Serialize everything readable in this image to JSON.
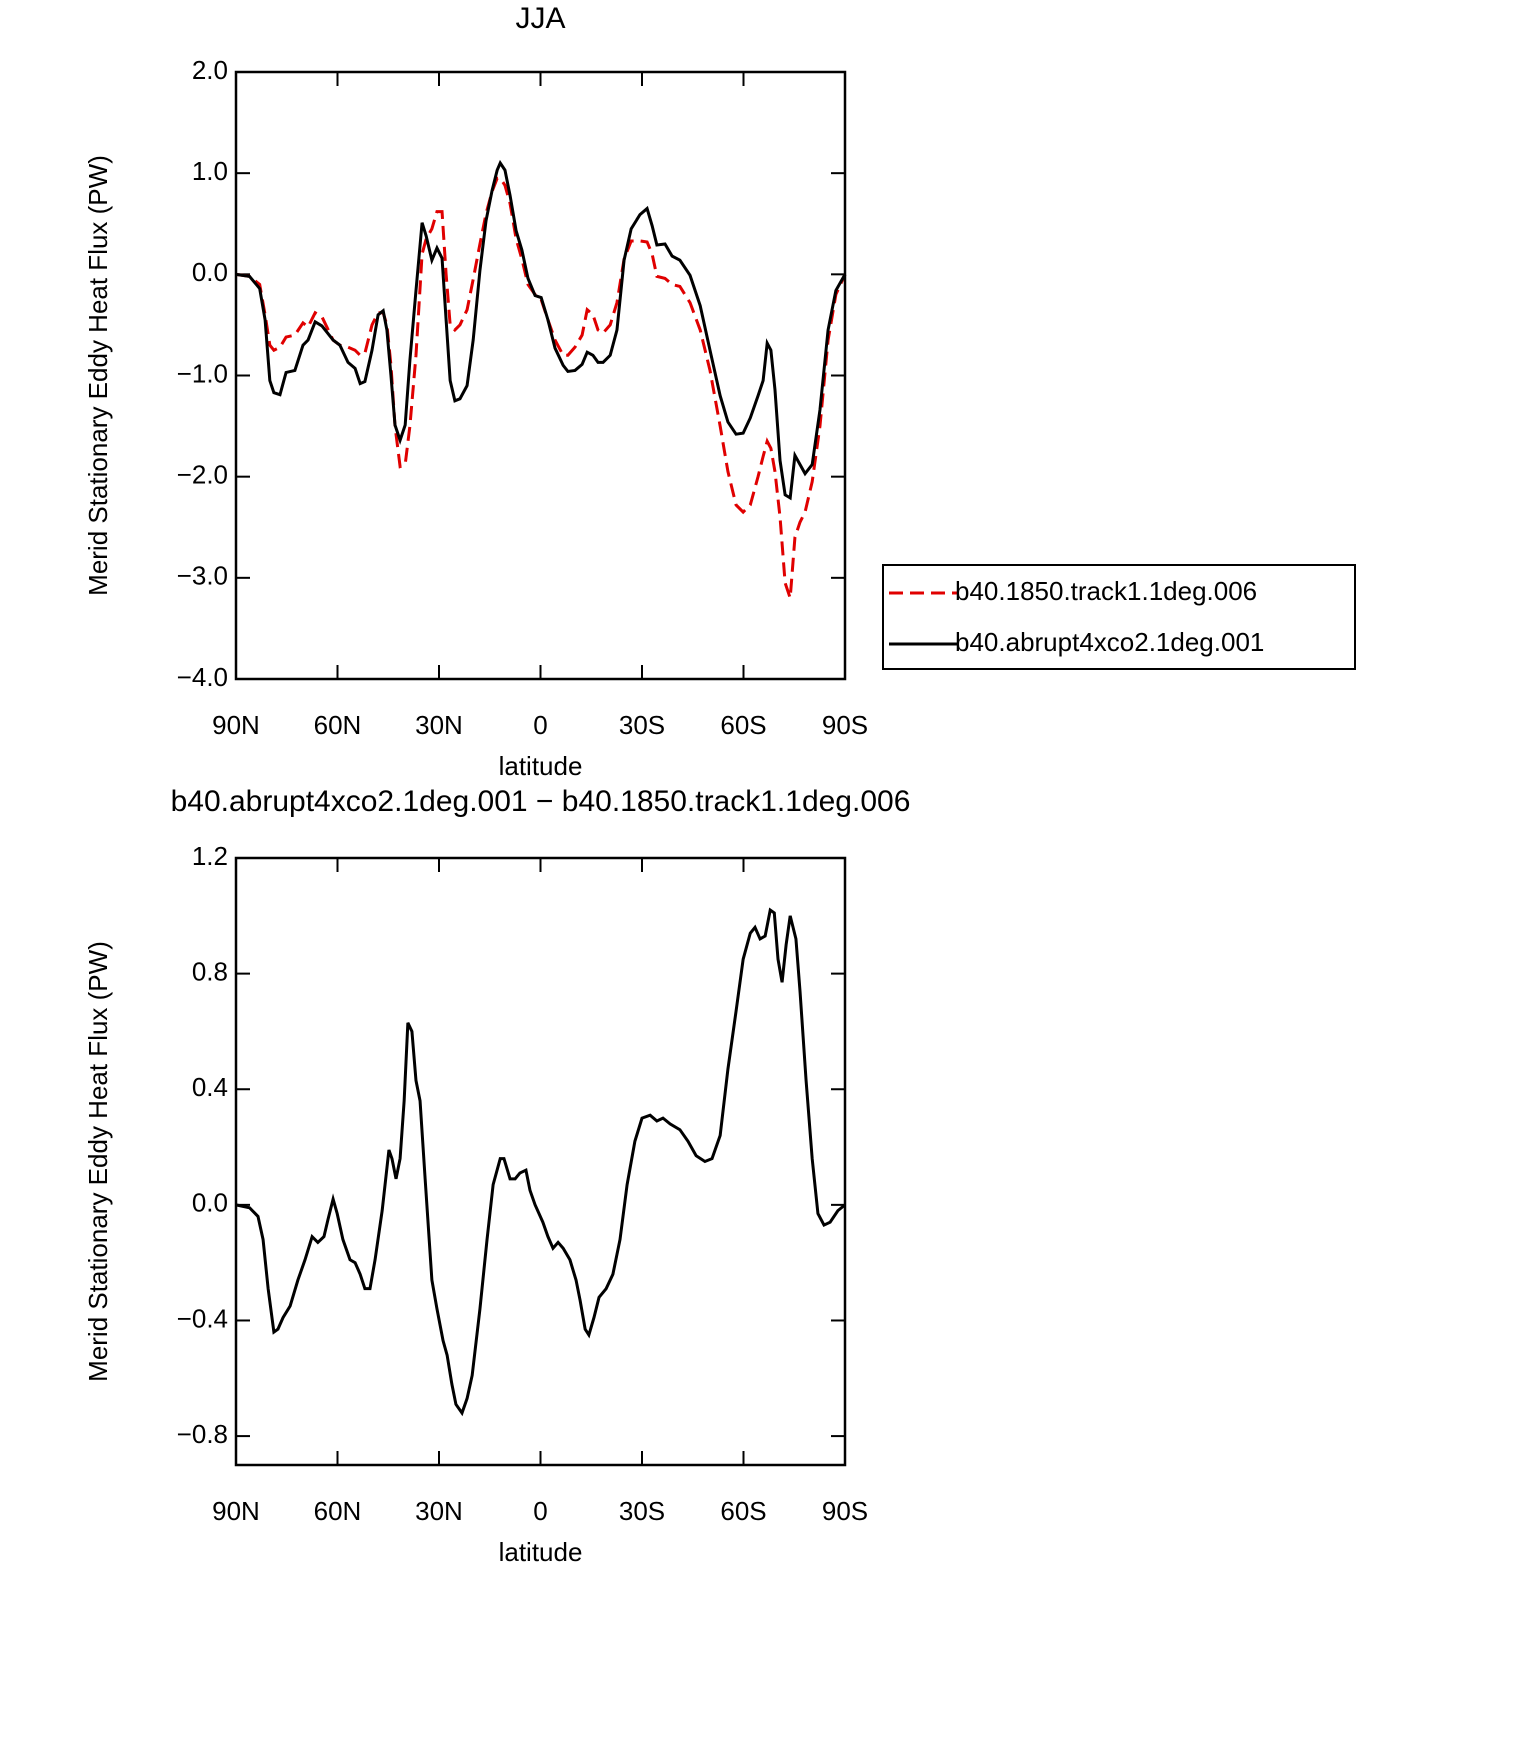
{
  "chart_data": [
    {
      "type": "line",
      "title": "JJA",
      "xlabel": "latitude",
      "ylabel": "Merid Stationary Eddy Heat Flux (PW)",
      "x": [
        90,
        86,
        83,
        81.4,
        80,
        78.8,
        77,
        75.2,
        72.6,
        70.2,
        68.7,
        66.6,
        64.6,
        61.3,
        59.3,
        56.9,
        54.8,
        53.3,
        51.9,
        49.8,
        48.0,
        46.5,
        45.4,
        44.2,
        43.0,
        41.5,
        40.0,
        38.6,
        36.8,
        35.0,
        33.8,
        32.1,
        30.6,
        29.1,
        27.9,
        26.7,
        25.3,
        23.8,
        21.7,
        19.9,
        17.9,
        16.1,
        14.3,
        12.8,
        11.9,
        10.5,
        9.0,
        7.2,
        5.5,
        3.7,
        1.6,
        -0.2,
        -2.2,
        -4.3,
        -6.7,
        -8.1,
        -10.2,
        -12.3,
        -13.8,
        -15.5,
        -17.0,
        -18.5,
        -20.6,
        -22.6,
        -24.7,
        -26.8,
        -29.4,
        -31.5,
        -33.0,
        -34.4,
        -36.8,
        -38.9,
        -41.2,
        -44.2,
        -47.2,
        -50.1,
        -53.1,
        -55.4,
        -57.8,
        -59.9,
        -62.0,
        -64.3,
        -65.8,
        -67.0,
        -68.1,
        -69.3,
        -70.8,
        -72.3,
        -73.8,
        -75.2,
        -76.7,
        -78.2,
        -80.3,
        -82.6,
        -85.0,
        -87.3,
        -90
      ],
      "series": [
        {
          "name": "b40.1850.track1.1deg.006",
          "color": "#e00000",
          "line_style": "dashed",
          "values": [
            0,
            -0.02,
            -0.1,
            -0.4,
            -0.7,
            -0.75,
            -0.72,
            -0.62,
            -0.6,
            -0.48,
            -0.52,
            -0.38,
            -0.42,
            -0.65,
            -0.7,
            -0.72,
            -0.75,
            -0.8,
            -0.78,
            -0.5,
            -0.38,
            -0.38,
            -0.5,
            -0.9,
            -1.5,
            -1.9,
            -1.88,
            -1.5,
            -0.8,
            0.2,
            0.35,
            0.45,
            0.62,
            0.62,
            0.0,
            -0.5,
            -0.55,
            -0.5,
            -0.35,
            -0.05,
            0.3,
            0.6,
            0.82,
            0.95,
            0.95,
            0.88,
            0.7,
            0.35,
            0.15,
            -0.1,
            -0.2,
            -0.25,
            -0.45,
            -0.65,
            -0.8,
            -0.8,
            -0.72,
            -0.6,
            -0.35,
            -0.4,
            -0.55,
            -0.58,
            -0.5,
            -0.28,
            0.15,
            0.33,
            0.33,
            0.32,
            0.2,
            -0.02,
            -0.04,
            -0.1,
            -0.12,
            -0.28,
            -0.55,
            -0.95,
            -1.5,
            -1.95,
            -2.28,
            -2.35,
            -2.28,
            -2.0,
            -1.8,
            -1.65,
            -1.72,
            -1.95,
            -2.4,
            -3.05,
            -3.2,
            -2.6,
            -2.45,
            -2.35,
            -2.05,
            -1.5,
            -0.65,
            -0.2,
            0
          ]
        },
        {
          "name": "b40.abrupt4xco2.1deg.001",
          "color": "#000000",
          "line_style": "solid",
          "values": [
            0,
            -0.02,
            -0.14,
            -0.45,
            -1.05,
            -1.17,
            -1.19,
            -0.97,
            -0.95,
            -0.7,
            -0.65,
            -0.47,
            -0.51,
            -0.65,
            -0.7,
            -0.87,
            -0.93,
            -1.08,
            -1.06,
            -0.75,
            -0.4,
            -0.36,
            -0.55,
            -1.0,
            -1.49,
            -1.64,
            -1.49,
            -0.85,
            -0.16,
            0.51,
            0.38,
            0.14,
            0.26,
            0.16,
            -0.45,
            -1.05,
            -1.25,
            -1.23,
            -1.1,
            -0.65,
            0.04,
            0.53,
            0.83,
            1.03,
            1.1,
            1.03,
            0.78,
            0.43,
            0.24,
            -0.04,
            -0.21,
            -0.23,
            -0.45,
            -0.73,
            -0.9,
            -0.96,
            -0.95,
            -0.89,
            -0.77,
            -0.8,
            -0.87,
            -0.87,
            -0.8,
            -0.55,
            0.14,
            0.45,
            0.59,
            0.65,
            0.48,
            0.29,
            0.3,
            0.18,
            0.14,
            -0.01,
            -0.31,
            -0.75,
            -1.2,
            -1.46,
            -1.58,
            -1.57,
            -1.42,
            -1.2,
            -1.05,
            -0.68,
            -0.75,
            -1.14,
            -1.84,
            -2.18,
            -2.21,
            -1.79,
            -1.88,
            -1.97,
            -1.88,
            -1.34,
            -0.55,
            -0.16,
            0
          ]
        }
      ],
      "xlim": [
        90,
        -90
      ],
      "xticks": [
        {
          "value": 90,
          "label": "90N"
        },
        {
          "value": 60,
          "label": "60N"
        },
        {
          "value": 30,
          "label": "30N"
        },
        0,
        {
          "value": -30,
          "label": "30S"
        },
        {
          "value": -60,
          "label": "60S"
        },
        {
          "value": -90,
          "label": "90S"
        }
      ],
      "ylim": [
        -4,
        2
      ],
      "yticks": [
        {
          "value": 2,
          "label": "2.0"
        },
        {
          "value": 1,
          "label": "1.0"
        },
        {
          "value": 0,
          "label": "0.0"
        },
        {
          "value": -1,
          "label": "−1.0"
        },
        {
          "value": -2,
          "label": "−2.0"
        },
        {
          "value": -3,
          "label": "−3.0"
        },
        {
          "value": -4,
          "label": "−4.0"
        }
      ],
      "legend": "right"
    },
    {
      "type": "line",
      "title": "b40.abrupt4xco2.1deg.001 − b40.1850.track1.1deg.006",
      "xlabel": "latitude",
      "ylabel": "Merid Stationary Eddy Heat Flux (PW)",
      "x": [
        90,
        86,
        83.5,
        82,
        80.5,
        78.8,
        77.6,
        76.1,
        74,
        71.7,
        69.6,
        67.5,
        65.8,
        64,
        62.8,
        61.3,
        60.1,
        58.4,
        56.3,
        54.8,
        53.3,
        51.9,
        50.4,
        48.9,
        46.8,
        44.8,
        43.9,
        42.7,
        41.5,
        40.3,
        39.2,
        38,
        36.8,
        35.6,
        34.1,
        32.1,
        30.6,
        28.8,
        27.6,
        26.2,
        25.0,
        23.2,
        21.7,
        20.2,
        17.9,
        15.8,
        14.0,
        11.9,
        10.8,
        9.0,
        7.5,
        6.1,
        4.3,
        3.1,
        1.6,
        -0.7,
        -2.2,
        -3.7,
        -5.2,
        -6.7,
        -8.7,
        -10.5,
        -11.7,
        -13.2,
        -14.3,
        -15.8,
        -17.3,
        -19.4,
        -21.4,
        -23.5,
        -25.6,
        -27.9,
        -30.0,
        -32.4,
        -34.4,
        -36.2,
        -38.3,
        -41.2,
        -43.6,
        -46.0,
        -48.6,
        -50.7,
        -53.1,
        -55.4,
        -57.8,
        -59.9,
        -62.0,
        -63.4,
        -64.9,
        -66.4,
        -67.9,
        -69.1,
        -70.2,
        -71.4,
        -72.6,
        -73.8,
        -75.5,
        -76.7,
        -78.5,
        -80.3,
        -82.0,
        -83.8,
        -85.6,
        -87.9,
        -90
      ],
      "series": [
        {
          "color": "#000000",
          "line_style": "solid",
          "values": [
            0,
            -0.01,
            -0.04,
            -0.12,
            -0.29,
            -0.44,
            -0.43,
            -0.39,
            -0.35,
            -0.26,
            -0.19,
            -0.11,
            -0.13,
            -0.11,
            -0.05,
            0.02,
            -0.03,
            -0.12,
            -0.19,
            -0.2,
            -0.24,
            -0.29,
            -0.29,
            -0.19,
            -0.02,
            0.19,
            0.16,
            0.09,
            0.16,
            0.36,
            0.63,
            0.6,
            0.43,
            0.36,
            0.09,
            -0.26,
            -0.36,
            -0.47,
            -0.52,
            -0.62,
            -0.69,
            -0.72,
            -0.67,
            -0.59,
            -0.36,
            -0.12,
            0.07,
            0.16,
            0.16,
            0.09,
            0.09,
            0.11,
            0.12,
            0.05,
            0.0,
            -0.06,
            -0.11,
            -0.15,
            -0.13,
            -0.15,
            -0.19,
            -0.26,
            -0.33,
            -0.43,
            -0.45,
            -0.39,
            -0.32,
            -0.29,
            -0.24,
            -0.12,
            0.07,
            0.22,
            0.3,
            0.31,
            0.29,
            0.3,
            0.28,
            0.26,
            0.22,
            0.17,
            0.15,
            0.16,
            0.24,
            0.47,
            0.67,
            0.85,
            0.94,
            0.96,
            0.92,
            0.93,
            1.02,
            1.01,
            0.85,
            0.77,
            0.9,
            1.0,
            0.92,
            0.74,
            0.43,
            0.16,
            -0.03,
            -0.07,
            -0.06,
            -0.02,
            0
          ]
        }
      ],
      "xlim": [
        90,
        -90
      ],
      "xticks": [
        {
          "value": 90,
          "label": "90N"
        },
        {
          "value": 60,
          "label": "60N"
        },
        {
          "value": 30,
          "label": "30N"
        },
        0,
        {
          "value": -30,
          "label": "30S"
        },
        {
          "value": -60,
          "label": "60S"
        },
        {
          "value": -90,
          "label": "90S"
        }
      ],
      "ylim": [
        -0.9,
        1.2
      ],
      "yticks": [
        1.2,
        0.8,
        0.4,
        {
          "value": 0,
          "label": "0.0"
        },
        {
          "value": -0.4,
          "label": "−0.4"
        },
        {
          "value": -0.8,
          "label": "−0.8"
        }
      ]
    }
  ]
}
